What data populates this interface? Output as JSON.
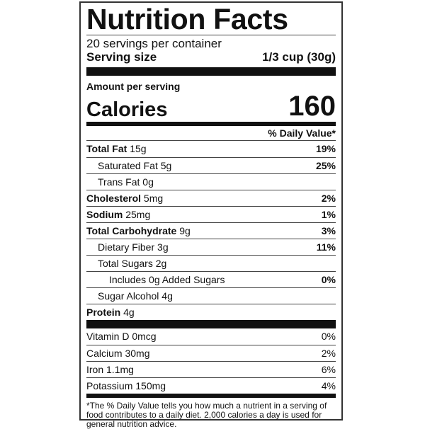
{
  "title": "Nutrition Facts",
  "servings_per_container": "20 servings per container",
  "serving_size": {
    "label": "Serving size",
    "value": "1/3 cup (30g)"
  },
  "amount_per_serving": "Amount per serving",
  "calories": {
    "label": "Calories",
    "value": "160"
  },
  "daily_value_header": "% Daily Value*",
  "nutrients": [
    {
      "name": "Total Fat",
      "amount": "15g",
      "dv": "19%"
    },
    {
      "name": "Saturated Fat",
      "amount": "5g",
      "dv": "25%"
    },
    {
      "name": "Trans Fat",
      "amount": "0g",
      "dv": ""
    },
    {
      "name": "Cholesterol",
      "amount": "5mg",
      "dv": "2%"
    },
    {
      "name": "Sodium",
      "amount": "25mg",
      "dv": "1%"
    },
    {
      "name": "Total Carbohydrate",
      "amount": "9g",
      "dv": "3%"
    },
    {
      "name": "Dietary Fiber",
      "amount": "3g",
      "dv": "11%"
    },
    {
      "name": "Total Sugars",
      "amount": "2g",
      "dv": ""
    },
    {
      "name": "Includes 0g Added Sugars",
      "amount": "",
      "dv": "0%"
    },
    {
      "name": "Sugar Alcohol",
      "amount": "4g",
      "dv": ""
    },
    {
      "name": "Protein",
      "amount": "4g",
      "dv": ""
    }
  ],
  "vitamins": [
    {
      "name": "Vitamin D",
      "amount": "0mcg",
      "dv": "0%"
    },
    {
      "name": "Calcium",
      "amount": "30mg",
      "dv": "2%"
    },
    {
      "name": "Iron",
      "amount": "1.1mg",
      "dv": "6%"
    },
    {
      "name": "Potassium",
      "amount": "150mg",
      "dv": "4%"
    }
  ],
  "footnote": "*The % Daily Value tells you how much a nutrient in a serving of food contributes to a daily diet. 2,000 calories a day is used for general nutrition advice."
}
